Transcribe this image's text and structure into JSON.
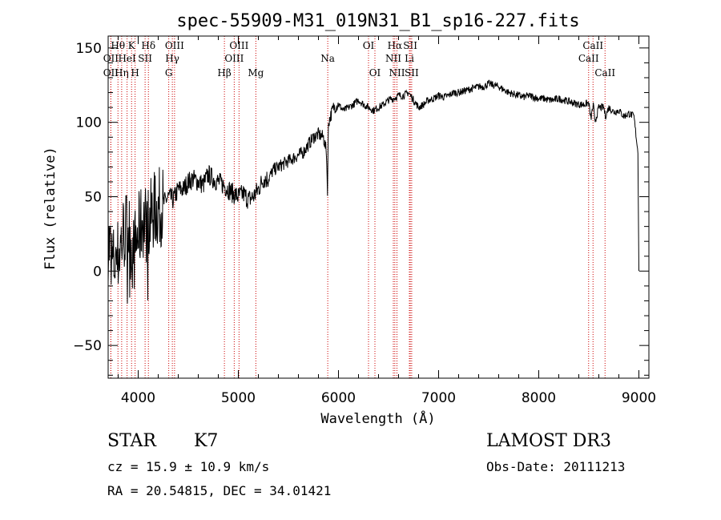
{
  "chart_data": {
    "type": "line",
    "title": "spec-55909-M31_019N31_B1_sp16-227.fits",
    "xlabel": "Wavelength (Å)",
    "ylabel": "Flux (relative)",
    "xlim": [
      3700,
      9100
    ],
    "ylim": [
      -72,
      158
    ],
    "xticks": [
      4000,
      5000,
      6000,
      7000,
      8000,
      9000
    ],
    "yticks": [
      -50,
      0,
      50,
      100,
      150
    ],
    "series": [
      {
        "name": "flux",
        "x": [
          3700,
          3750,
          3800,
          3850,
          3900,
          3950,
          4000,
          4050,
          4100,
          4150,
          4200,
          4250,
          4300,
          4350,
          4400,
          4450,
          4500,
          4550,
          4600,
          4650,
          4700,
          4750,
          4800,
          4850,
          4900,
          4950,
          5000,
          5050,
          5100,
          5150,
          5200,
          5250,
          5300,
          5350,
          5400,
          5450,
          5500,
          5550,
          5600,
          5650,
          5700,
          5750,
          5800,
          5850,
          5880,
          5890,
          5900,
          5950,
          6000,
          6050,
          6100,
          6150,
          6200,
          6250,
          6300,
          6350,
          6400,
          6450,
          6500,
          6550,
          6600,
          6650,
          6700,
          6750,
          6800,
          6850,
          6900,
          6950,
          7000,
          7050,
          7100,
          7150,
          7200,
          7250,
          7300,
          7350,
          7400,
          7450,
          7500,
          7550,
          7600,
          7650,
          7700,
          7750,
          7800,
          7850,
          7900,
          7950,
          8000,
          8050,
          8100,
          8150,
          8200,
          8250,
          8300,
          8350,
          8400,
          8450,
          8500,
          8520,
          8545,
          8560,
          8600,
          8650,
          8665,
          8700,
          8750,
          8800,
          8850,
          8900,
          8950,
          8990,
          9000
        ],
        "values": [
          20,
          5,
          10,
          25,
          30,
          10,
          25,
          35,
          30,
          40,
          42,
          45,
          50,
          48,
          55,
          55,
          60,
          62,
          60,
          58,
          65,
          62,
          60,
          58,
          55,
          52,
          50,
          52,
          48,
          50,
          55,
          62,
          62,
          68,
          70,
          72,
          74,
          76,
          78,
          80,
          85,
          90,
          92,
          90,
          80,
          55,
          100,
          110,
          112,
          108,
          110,
          112,
          115,
          112,
          110,
          108,
          110,
          112,
          115,
          116,
          118,
          118,
          120,
          115,
          110,
          112,
          115,
          116,
          118,
          117,
          118,
          120,
          120,
          121,
          122,
          123,
          124,
          124,
          126,
          125,
          124,
          122,
          120,
          119,
          118,
          117,
          118,
          117,
          116,
          116,
          115,
          115,
          116,
          115,
          114,
          113,
          112,
          112,
          113,
          102,
          112,
          100,
          110,
          110,
          104,
          110,
          107,
          108,
          104,
          106,
          104,
          80,
          0
        ]
      }
    ],
    "lines": [
      {
        "label": "Hθ",
        "x": 3798,
        "row": 1
      },
      {
        "label": "OII",
        "x": 3727,
        "row": 2
      },
      {
        "label": "OII",
        "x": 3727,
        "row": 3
      },
      {
        "label": "Hη",
        "x": 3835,
        "row": 3
      },
      {
        "label": "K",
        "x": 3934,
        "row": 1
      },
      {
        "label": "HeI",
        "x": 3889,
        "row": 2
      },
      {
        "label": "H",
        "x": 3969,
        "row": 3
      },
      {
        "label": "Hδ",
        "x": 4102,
        "row": 1
      },
      {
        "label": "SII",
        "x": 4069,
        "row": 2
      },
      {
        "label": "OIII",
        "x": 4363,
        "row": 1
      },
      {
        "label": "Hγ",
        "x": 4341,
        "row": 2
      },
      {
        "label": "G",
        "x": 4305,
        "row": 3
      },
      {
        "label": "OIII",
        "x": 5007,
        "row": 1
      },
      {
        "label": "OIII",
        "x": 4959,
        "row": 2
      },
      {
        "label": "Hβ",
        "x": 4861,
        "row": 3
      },
      {
        "label": "Mg",
        "x": 5175,
        "row": 3
      },
      {
        "label": "Na",
        "x": 5893,
        "row": 2
      },
      {
        "label": "OI",
        "x": 6300,
        "row": 1
      },
      {
        "label": "OI",
        "x": 6364,
        "row": 3
      },
      {
        "label": "Hα",
        "x": 6563,
        "row": 1
      },
      {
        "label": "SII",
        "x": 6717,
        "row": 1
      },
      {
        "label": "NII",
        "x": 6548,
        "row": 2
      },
      {
        "label": "Li",
        "x": 6708,
        "row": 2
      },
      {
        "label": "NII",
        "x": 6584,
        "row": 3
      },
      {
        "label": "SII",
        "x": 6731,
        "row": 3
      },
      {
        "label": "CaII",
        "x": 8542,
        "row": 1
      },
      {
        "label": "CaII",
        "x": 8498,
        "row": 2
      },
      {
        "label": "CaII",
        "x": 8662,
        "row": 3
      }
    ]
  },
  "info": {
    "object_class": "STAR",
    "subclass": "K7",
    "survey": "LAMOST DR3",
    "cz": "cz =  15.9 ± 10.9 km/s",
    "obs_date": "Obs-Date: 20111213",
    "radec": "RA =  20.54815, DEC =  34.01421"
  }
}
